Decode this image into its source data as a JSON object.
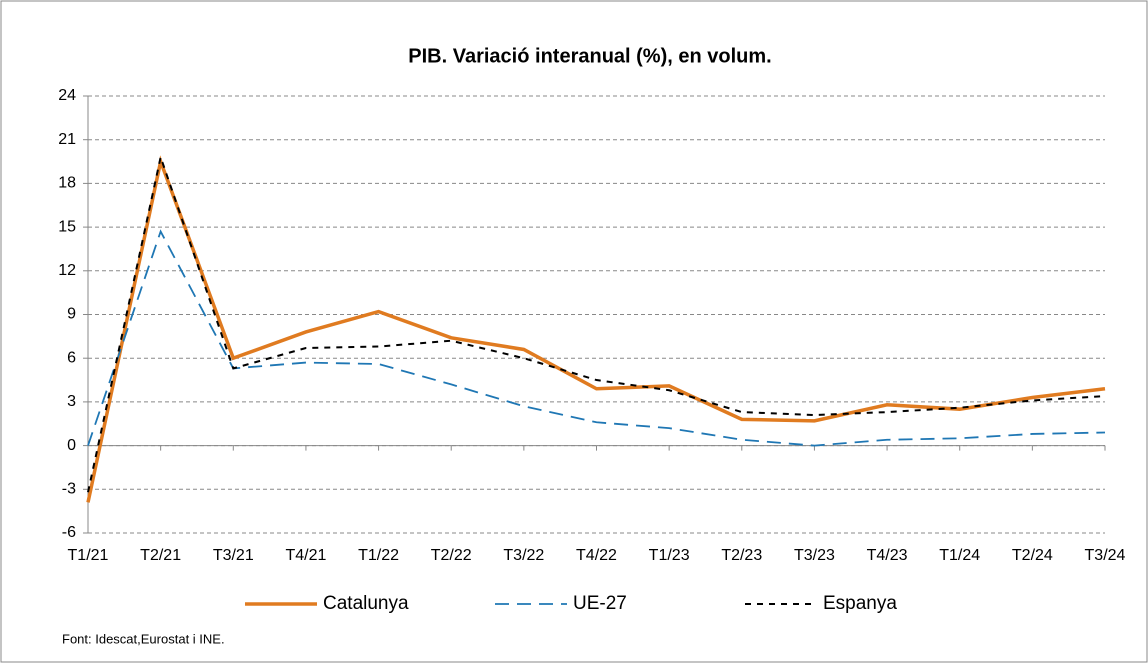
{
  "chart_data": {
    "type": "line",
    "title": "PIB. Variació interanual (%), en volum.",
    "categories": [
      "T1/21",
      "T2/21",
      "T3/21",
      "T4/21",
      "T1/22",
      "T2/22",
      "T3/22",
      "T4/22",
      "T1/23",
      "T2/23",
      "T3/23",
      "T4/23",
      "T1/24",
      "T2/24",
      "T3/24"
    ],
    "series": [
      {
        "name": "Catalunya",
        "color": "#e07b20",
        "dash": "solid",
        "values": [
          -3.9,
          19.5,
          6.0,
          7.8,
          9.2,
          7.4,
          6.6,
          3.9,
          4.1,
          1.8,
          1.7,
          2.8,
          2.5,
          3.3,
          3.9
        ]
      },
      {
        "name": "UE-27",
        "color": "#1f77b4",
        "dash": "long",
        "values": [
          0.0,
          14.7,
          5.3,
          5.7,
          5.6,
          4.2,
          2.7,
          1.6,
          1.2,
          0.4,
          0.0,
          0.4,
          0.5,
          0.8,
          0.9
        ]
      },
      {
        "name": "Espanya",
        "color": "#000000",
        "dash": "short",
        "values": [
          -3.2,
          19.8,
          5.3,
          6.7,
          6.8,
          7.2,
          6.0,
          4.5,
          3.8,
          2.3,
          2.1,
          2.3,
          2.6,
          3.1,
          3.4
        ]
      }
    ],
    "ylim": [
      -6,
      24
    ],
    "yticks": [
      -6,
      -3,
      0,
      3,
      6,
      9,
      12,
      15,
      18,
      21,
      24
    ],
    "grid": true,
    "legend": "bottom",
    "source": "Font: Idescat,Eurostat i INE."
  }
}
